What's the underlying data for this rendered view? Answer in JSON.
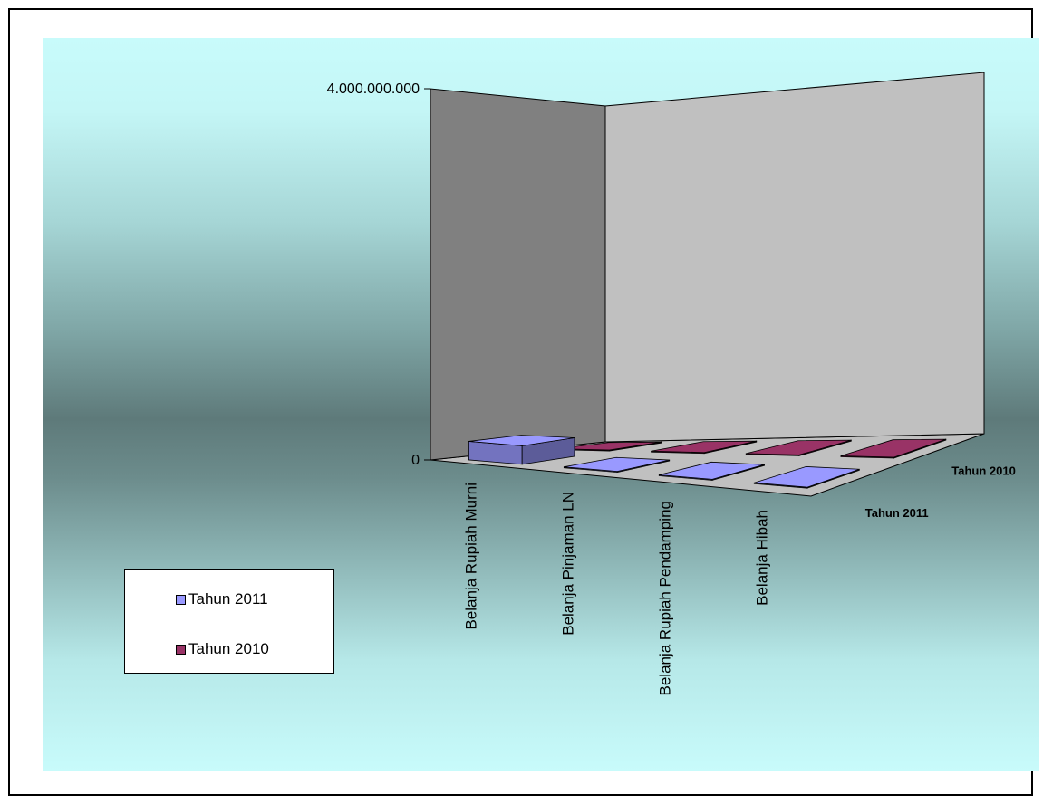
{
  "chart_data": {
    "type": "bar",
    "subtype": "3d-column",
    "categories": [
      "Belanja Rupiah Murni",
      "Belanja Pinjaman LN",
      "Belanja Rupiah Pendamping",
      "Belanja Hibah"
    ],
    "series": [
      {
        "name": "Tahun 2011",
        "color": "#9999ff",
        "values": [
          200000000,
          0,
          0,
          0
        ]
      },
      {
        "name": "Tahun 2010",
        "color": "#993366",
        "values": [
          0,
          0,
          0,
          0
        ]
      }
    ],
    "y_ticks": [
      "4.000.000.000",
      "0"
    ],
    "ylim": [
      0,
      4000000000
    ],
    "depth_labels": [
      "Tahun 2011",
      "Tahun 2010"
    ],
    "legend_position": "bottom-left",
    "colors": {
      "left_wall": "#808080",
      "back_wall": "#c0c0c0",
      "floor": "#c0c0c0"
    }
  }
}
